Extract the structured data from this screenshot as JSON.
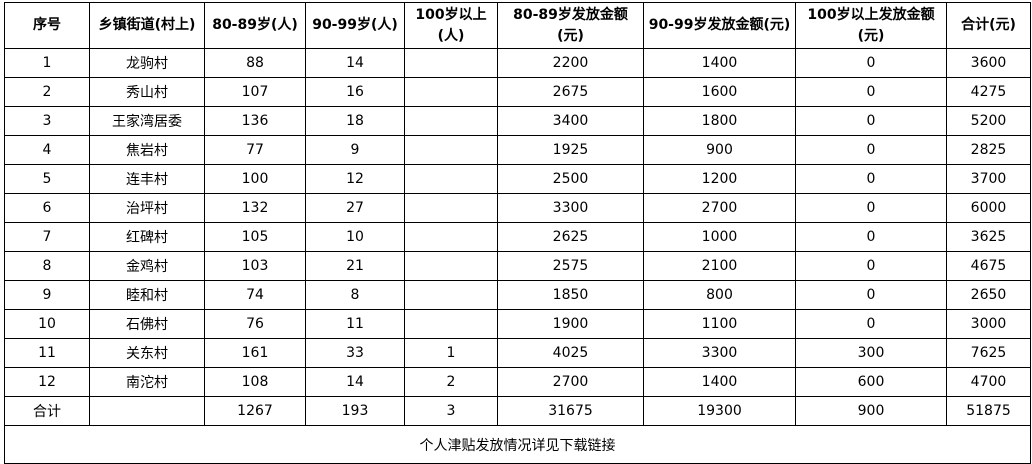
{
  "table": {
    "columns": [
      {
        "label": "序号"
      },
      {
        "label": "乡镇街道(村上)"
      },
      {
        "label": "80-89岁(人)"
      },
      {
        "label": "90-99岁(人)"
      },
      {
        "label": "100岁以上(人)"
      },
      {
        "label": "80-89岁发放金额\n(元)"
      },
      {
        "label": "90-99岁发放金额(元)"
      },
      {
        "label": "100岁以上发放金额(元)"
      },
      {
        "label": "合计(元)"
      }
    ],
    "rows": [
      [
        "1",
        "龙驹村",
        "88",
        "14",
        "",
        "2200",
        "1400",
        "0",
        "3600"
      ],
      [
        "2",
        "秀山村",
        "107",
        "16",
        "",
        "2675",
        "1600",
        "0",
        "4275"
      ],
      [
        "3",
        "王家湾居委",
        "136",
        "18",
        "",
        "3400",
        "1800",
        "0",
        "5200"
      ],
      [
        "4",
        "焦岩村",
        "77",
        "9",
        "",
        "1925",
        "900",
        "0",
        "2825"
      ],
      [
        "5",
        "连丰村",
        "100",
        "12",
        "",
        "2500",
        "1200",
        "0",
        "3700"
      ],
      [
        "6",
        "治坪村",
        "132",
        "27",
        "",
        "3300",
        "2700",
        "0",
        "6000"
      ],
      [
        "7",
        "红碑村",
        "105",
        "10",
        "",
        "2625",
        "1000",
        "0",
        "3625"
      ],
      [
        "8",
        "金鸡村",
        "103",
        "21",
        "",
        "2575",
        "2100",
        "0",
        "4675"
      ],
      [
        "9",
        "睦和村",
        "74",
        "8",
        "",
        "1850",
        "800",
        "0",
        "2650"
      ],
      [
        "10",
        "石佛村",
        "76",
        "11",
        "",
        "1900",
        "1100",
        "0",
        "3000"
      ],
      [
        "11",
        "关东村",
        "161",
        "33",
        "1",
        "4025",
        "3300",
        "300",
        "7625"
      ],
      [
        "12",
        "南沱村",
        "108",
        "14",
        "2",
        "2700",
        "1400",
        "600",
        "4700"
      ]
    ],
    "total_row": [
      "合计",
      "",
      "1267",
      "193",
      "3",
      "31675",
      "19300",
      "900",
      "51875"
    ],
    "footer_note": "个人津贴发放情况详见下载链接"
  },
  "colors": {
    "border": "#000000",
    "text": "#000000",
    "background": "#ffffff"
  }
}
